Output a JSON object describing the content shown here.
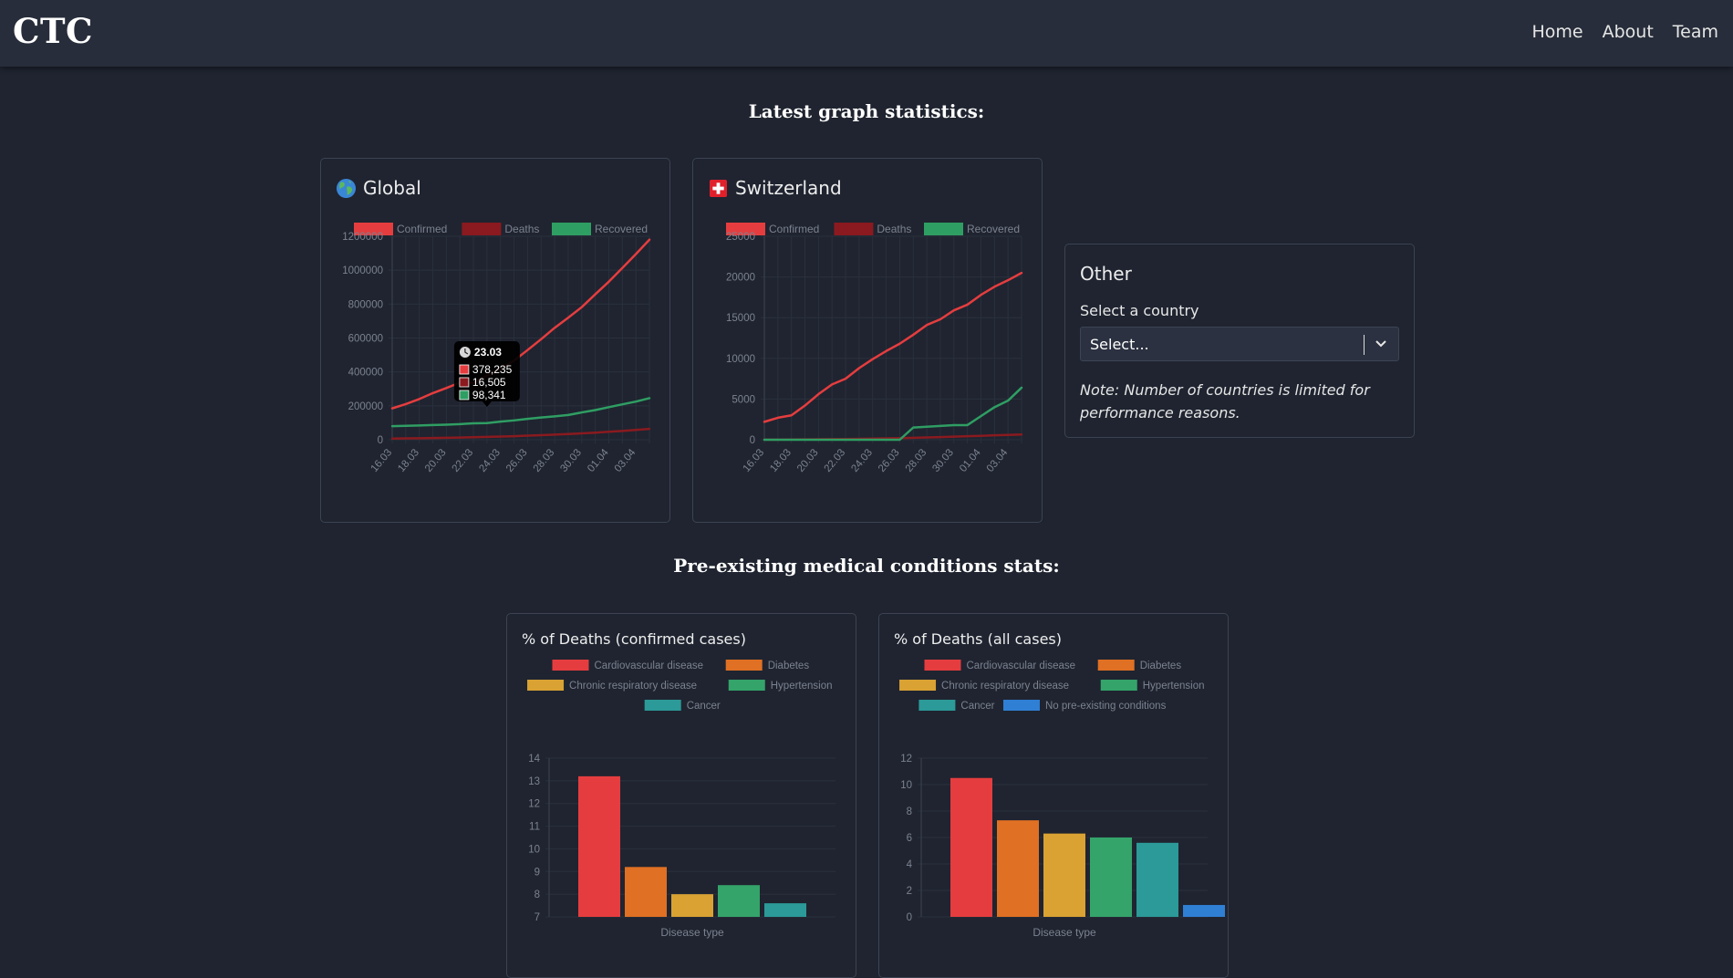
{
  "navbar": {
    "brand": "CTC",
    "links": [
      "Home",
      "About",
      "Team"
    ]
  },
  "sections": {
    "graphs_title": "Latest graph statistics:",
    "conditions_title": "Pre-existing medical conditions stats:"
  },
  "cards": {
    "global": {
      "title": "Global",
      "icon": "globe-icon"
    },
    "switzerland": {
      "title": "Switzerland",
      "icon": "swiss-flag-icon"
    },
    "other": {
      "title": "Other",
      "select_label": "Select a country",
      "select_placeholder": "Select...",
      "note": "Note: Number of countries is limited for performance reasons."
    }
  },
  "colors": {
    "confirmed": "#e53d3f",
    "deaths": "#8a1a1f",
    "recovered": "#2f9e63",
    "cardiovascular": "#e53d3f",
    "diabetes": "#e07023",
    "chronic_respiratory": "#d9a233",
    "hypertension": "#34a46a",
    "cancer": "#2b9a98",
    "no_conditions": "#2f7fd4"
  },
  "chart_data": [
    {
      "id": "global",
      "type": "line",
      "legend": [
        "Confirmed",
        "Deaths",
        "Recovered"
      ],
      "x": [
        "16.03",
        "17.03",
        "18.03",
        "19.03",
        "20.03",
        "21.03",
        "22.03",
        "23.03",
        "24.03",
        "25.03",
        "26.03",
        "27.03",
        "28.03",
        "29.03",
        "30.03",
        "31.03",
        "01.04",
        "02.04",
        "03.04",
        "04.04"
      ],
      "x_ticks": [
        "16.03",
        "18.03",
        "20.03",
        "22.03",
        "24.03",
        "26.03",
        "28.03",
        "30.03",
        "01.04",
        "03.04"
      ],
      "y_ticks": [
        "0",
        "200000",
        "400000",
        "600000",
        "800000",
        "1000000",
        "1200000"
      ],
      "ylim": [
        0,
        1200000
      ],
      "series": [
        {
          "name": "Confirmed",
          "values": [
            185000,
            210000,
            240000,
            275000,
            305000,
            337000,
            335000,
            378235,
            418000,
            467000,
            529000,
            593000,
            660000,
            720000,
            782000,
            858000,
            932000,
            1013000,
            1095000,
            1180000
          ]
        },
        {
          "name": "Deaths",
          "values": [
            7000,
            8000,
            9000,
            10000,
            11500,
            13000,
            14700,
            16505,
            18500,
            21000,
            24000,
            27000,
            30500,
            33500,
            37500,
            42000,
            47000,
            52000,
            58000,
            64000
          ]
        },
        {
          "name": "Recovered",
          "values": [
            80000,
            82000,
            84000,
            87000,
            89000,
            92000,
            97000,
            98341,
            107000,
            114000,
            123000,
            131000,
            138000,
            146000,
            161000,
            175000,
            192000,
            209000,
            225000,
            245000
          ]
        }
      ],
      "tooltip": {
        "date": "23.03",
        "values": [
          "378,235",
          "16,505",
          "98,341"
        ]
      }
    },
    {
      "id": "switzerland",
      "type": "line",
      "legend": [
        "Confirmed",
        "Deaths",
        "Recovered"
      ],
      "x": [
        "16.03",
        "17.03",
        "18.03",
        "19.03",
        "20.03",
        "21.03",
        "22.03",
        "23.03",
        "24.03",
        "25.03",
        "26.03",
        "27.03",
        "28.03",
        "29.03",
        "30.03",
        "31.03",
        "01.04",
        "02.04",
        "03.04",
        "04.04"
      ],
      "x_ticks": [
        "16.03",
        "18.03",
        "20.03",
        "22.03",
        "24.03",
        "26.03",
        "28.03",
        "30.03",
        "01.04",
        "03.04"
      ],
      "y_ticks": [
        "0",
        "5000",
        "10000",
        "15000",
        "20000",
        "25000"
      ],
      "ylim": [
        0,
        25000
      ],
      "series": [
        {
          "name": "Confirmed",
          "values": [
            2200,
            2700,
            3000,
            4200,
            5600,
            6800,
            7500,
            8800,
            9900,
            10900,
            11800,
            12900,
            14100,
            14800,
            15900,
            16600,
            17800,
            18800,
            19600,
            20500
          ]
        },
        {
          "name": "Deaths",
          "values": [
            15,
            20,
            30,
            40,
            55,
            70,
            90,
            110,
            140,
            170,
            200,
            240,
            280,
            320,
            380,
            430,
            480,
            540,
            590,
            640
          ]
        },
        {
          "name": "Recovered",
          "values": [
            0,
            0,
            0,
            0,
            0,
            0,
            0,
            0,
            0,
            0,
            0,
            1500,
            1600,
            1700,
            1800,
            1800,
            2900,
            4000,
            4800,
            6400
          ]
        }
      ]
    },
    {
      "id": "deaths-confirmed",
      "type": "bar",
      "title": "% of Deaths (confirmed cases)",
      "xlabel": "Disease type",
      "categories": [
        "Cardiovascular disease",
        "Diabetes",
        "Chronic respiratory disease",
        "Hypertension",
        "Cancer"
      ],
      "values": [
        13.2,
        9.2,
        8.0,
        8.4,
        7.6
      ],
      "y_ticks": [
        "7",
        "8",
        "9",
        "10",
        "11",
        "12",
        "13",
        "14"
      ],
      "ylim": [
        7,
        14
      ]
    },
    {
      "id": "deaths-all",
      "type": "bar",
      "title": "% of Deaths (all cases)",
      "xlabel": "Disease type",
      "categories": [
        "Cardiovascular disease",
        "Diabetes",
        "Chronic respiratory disease",
        "Hypertension",
        "Cancer",
        "No pre-existing conditions"
      ],
      "values": [
        10.5,
        7.3,
        6.3,
        6.0,
        5.6,
        0.9
      ],
      "y_ticks": [
        "0",
        "2",
        "4",
        "6",
        "8",
        "10",
        "12"
      ],
      "ylim": [
        0,
        12
      ]
    }
  ]
}
